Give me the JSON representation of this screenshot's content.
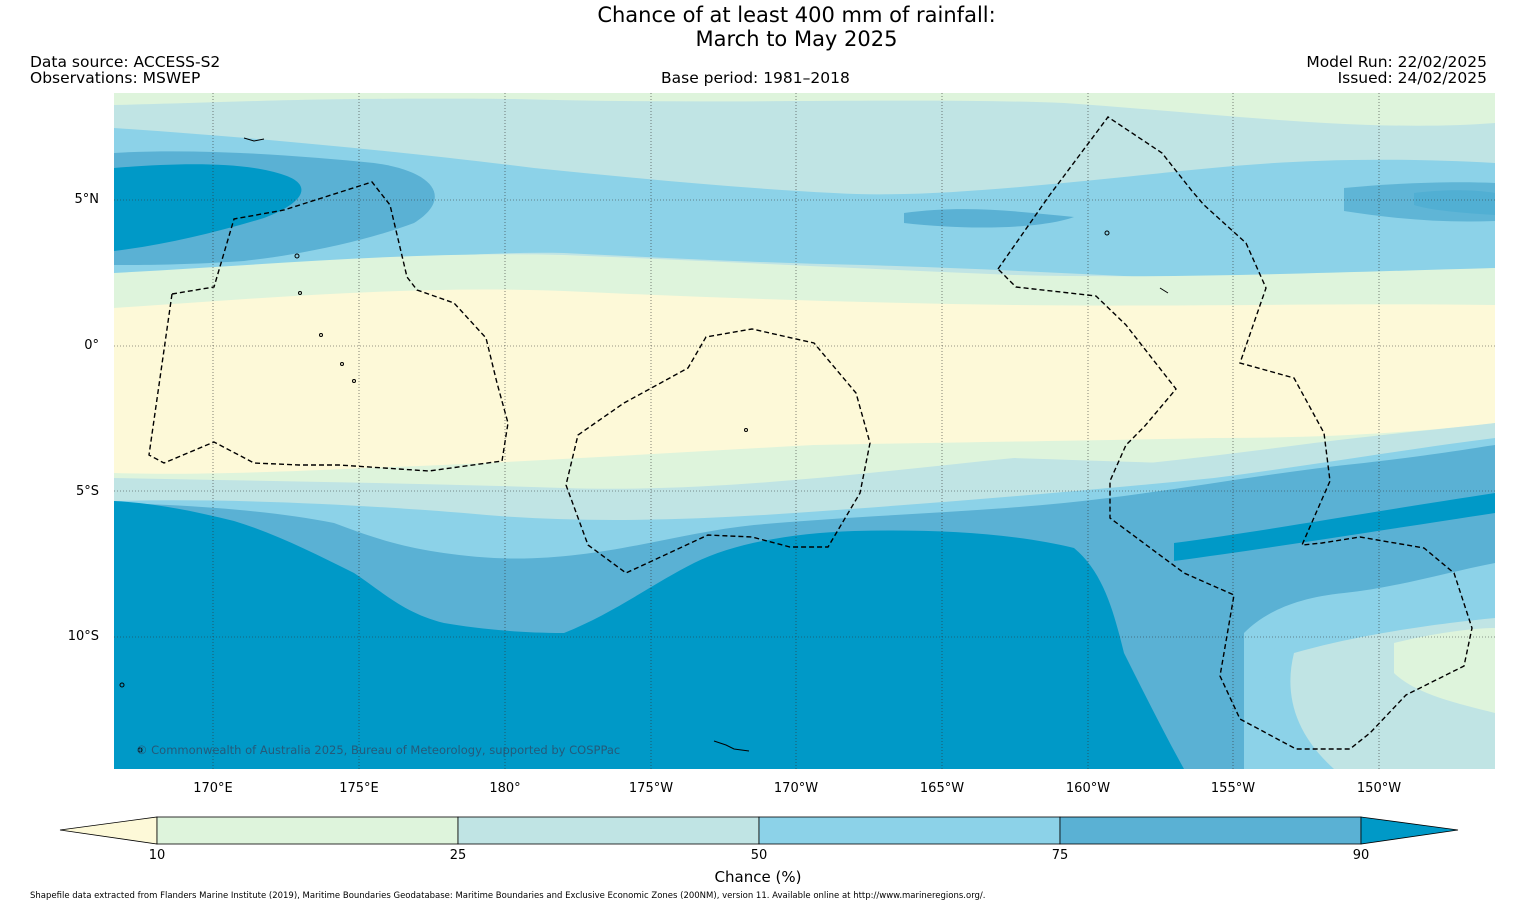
{
  "title": {
    "line1": "Chance of at least 400 mm of rainfall:",
    "line2": "March to May 2025"
  },
  "header": {
    "data_source": "Data source: ACCESS-S2",
    "observations": "Observations: MSWEP",
    "base_period": "Base period: 1981–2018",
    "model_run": "Model Run: 22/02/2025",
    "issued": "Issued: 24/02/2025"
  },
  "map": {
    "lat_labels": [
      "5°N",
      "0°",
      "5°S",
      "10°S"
    ],
    "lon_labels": [
      "170°E",
      "175°E",
      "180°",
      "175°W",
      "170°W",
      "165°W",
      "160°W",
      "155°W",
      "150°W"
    ],
    "copyright": "© Commonwealth of Australia 2025, Bureau of Meteorology, supported by COSPPac",
    "colors": {
      "below_10": "#fdf9d8",
      "c10_25": "#def4dc",
      "c25_50": "#c0e4e4",
      "c50_75": "#8cd2e8",
      "c75_90": "#5ab1d4",
      "above_90": "#0099c7"
    }
  },
  "colorbar": {
    "ticks": [
      "10",
      "25",
      "50",
      "75",
      "90"
    ],
    "label": "Chance (%)"
  },
  "footnote": "Shapefile data extracted from Flanders Marine Institute (2019), Maritime Boundaries Geodatabase: Maritime Boundaries and Exclusive Economic Zones (200NM), version 11. Available online at http://www.marineregions.org/."
}
